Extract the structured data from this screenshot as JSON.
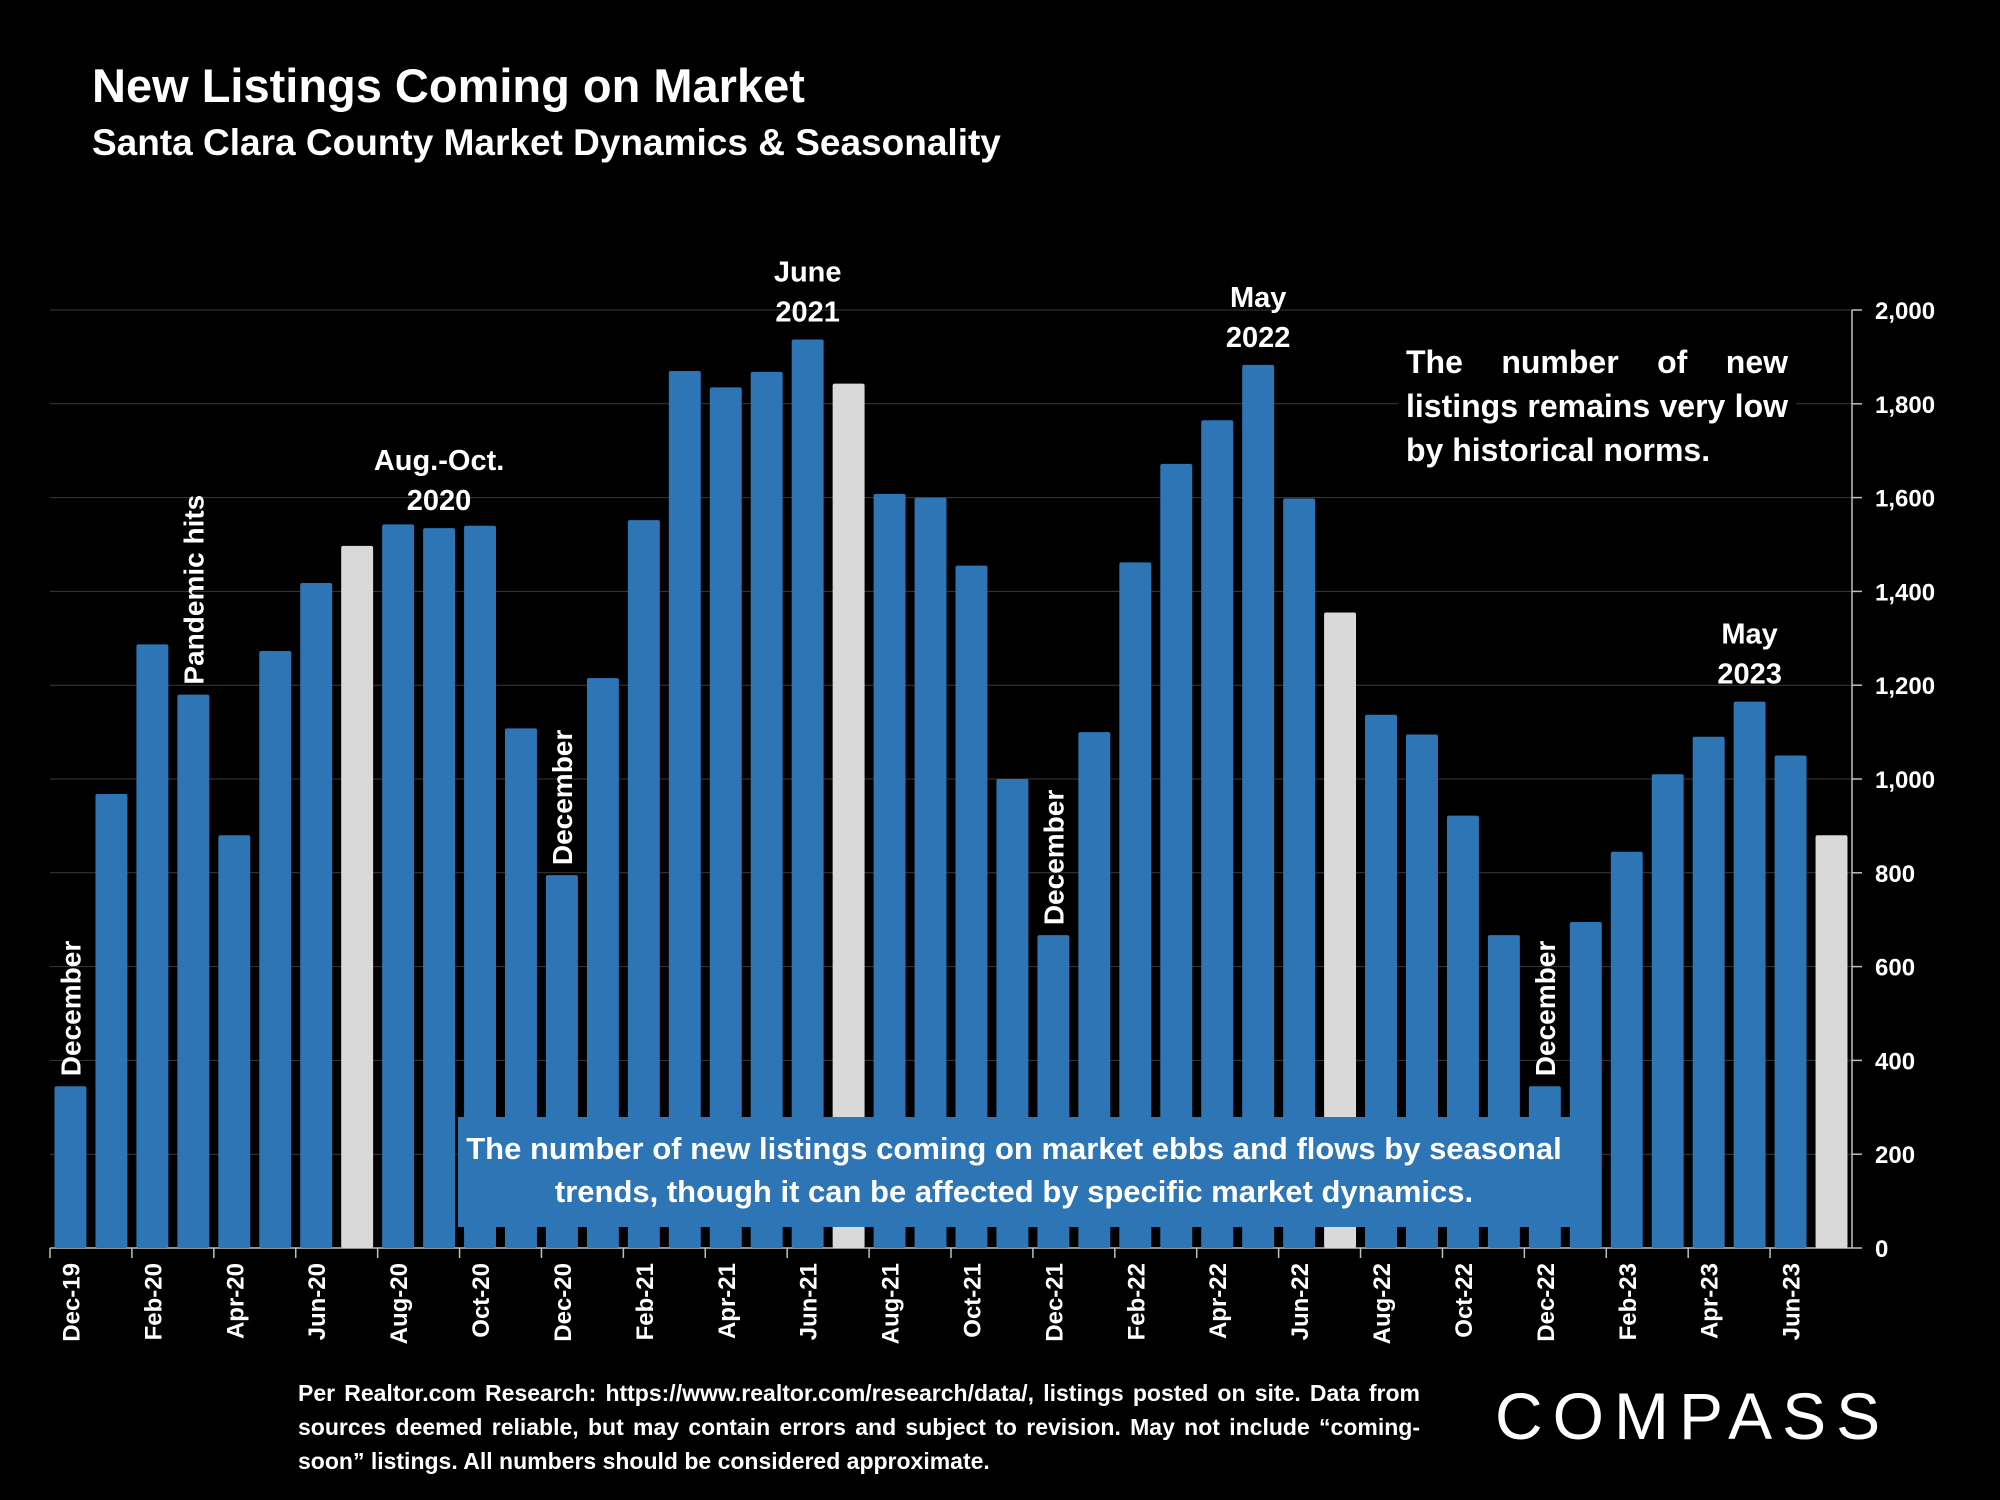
{
  "title": "New Listings Coming on Market",
  "subtitle": "Santa Clara County Market Dynamics & Seasonality",
  "callout_right": "The number of new listings remains very low by historical norms.",
  "callout_box": "The number of new listings coming on market ebbs and flows by seasonal trends, though it can be affected by specific market dynamics.",
  "footnote": "Per Realtor.com Research: https://www.realtor.com/research/data/, listings posted on site. Data from sources deemed reliable, but may contain errors and subject to revision. May not include “coming-soon” listings. All numbers should be considered approximate.",
  "logo": "COMPASS",
  "colors": {
    "bar": "#2e75b6",
    "highlight": "#d9d9d9",
    "background": "#000000"
  },
  "chart_data": {
    "type": "bar",
    "ylim": [
      0,
      2000
    ],
    "y_ticks": [
      "0",
      "200",
      "400",
      "600",
      "800",
      "1,000",
      "1,200",
      "1,400",
      "1,600",
      "1,800",
      "2,000"
    ],
    "axis_position": "right",
    "grid": true,
    "x_tick_labels": [
      "Dec-19",
      "Feb-20",
      "Apr-20",
      "Jun-20",
      "Aug-20",
      "Oct-20",
      "Dec-20",
      "Feb-21",
      "Apr-21",
      "Jun-21",
      "Aug-21",
      "Oct-21",
      "Dec-21",
      "Feb-22",
      "Apr-22",
      "Jun-22",
      "Aug-22",
      "Oct-22",
      "Dec-22",
      "Feb-23",
      "Apr-23",
      "Jun-23"
    ],
    "values": [
      345,
      968,
      1287,
      1180,
      880,
      1273,
      1418,
      1497,
      1543,
      1535,
      1540,
      1108,
      795,
      1215,
      1552,
      1870,
      1835,
      1868,
      1937,
      1843,
      1608,
      1600,
      1455,
      1000,
      667,
      1100,
      1462,
      1672,
      1765,
      1883,
      1598,
      1355,
      1137,
      1095,
      922,
      667,
      345,
      695,
      845,
      1010,
      1090,
      1165,
      1050,
      880
    ],
    "highlighted_indices": [
      7,
      19,
      31,
      43
    ],
    "annotations": [
      {
        "text": "December",
        "bar": 0,
        "rotated": true
      },
      {
        "text": "Pandemic hits",
        "bar": 3,
        "rotated": true
      },
      {
        "text": "Aug.-Oct.|2020",
        "bar": 9,
        "rotated": false
      },
      {
        "text": "December",
        "bar": 12,
        "rotated": true
      },
      {
        "text": "June|2021",
        "bar": 18,
        "rotated": false
      },
      {
        "text": "December",
        "bar": 24,
        "rotated": true
      },
      {
        "text": "May|2022",
        "bar": 29,
        "rotated": false
      },
      {
        "text": "December",
        "bar": 36,
        "rotated": true
      },
      {
        "text": "May|2023",
        "bar": 41,
        "rotated": false
      }
    ]
  }
}
